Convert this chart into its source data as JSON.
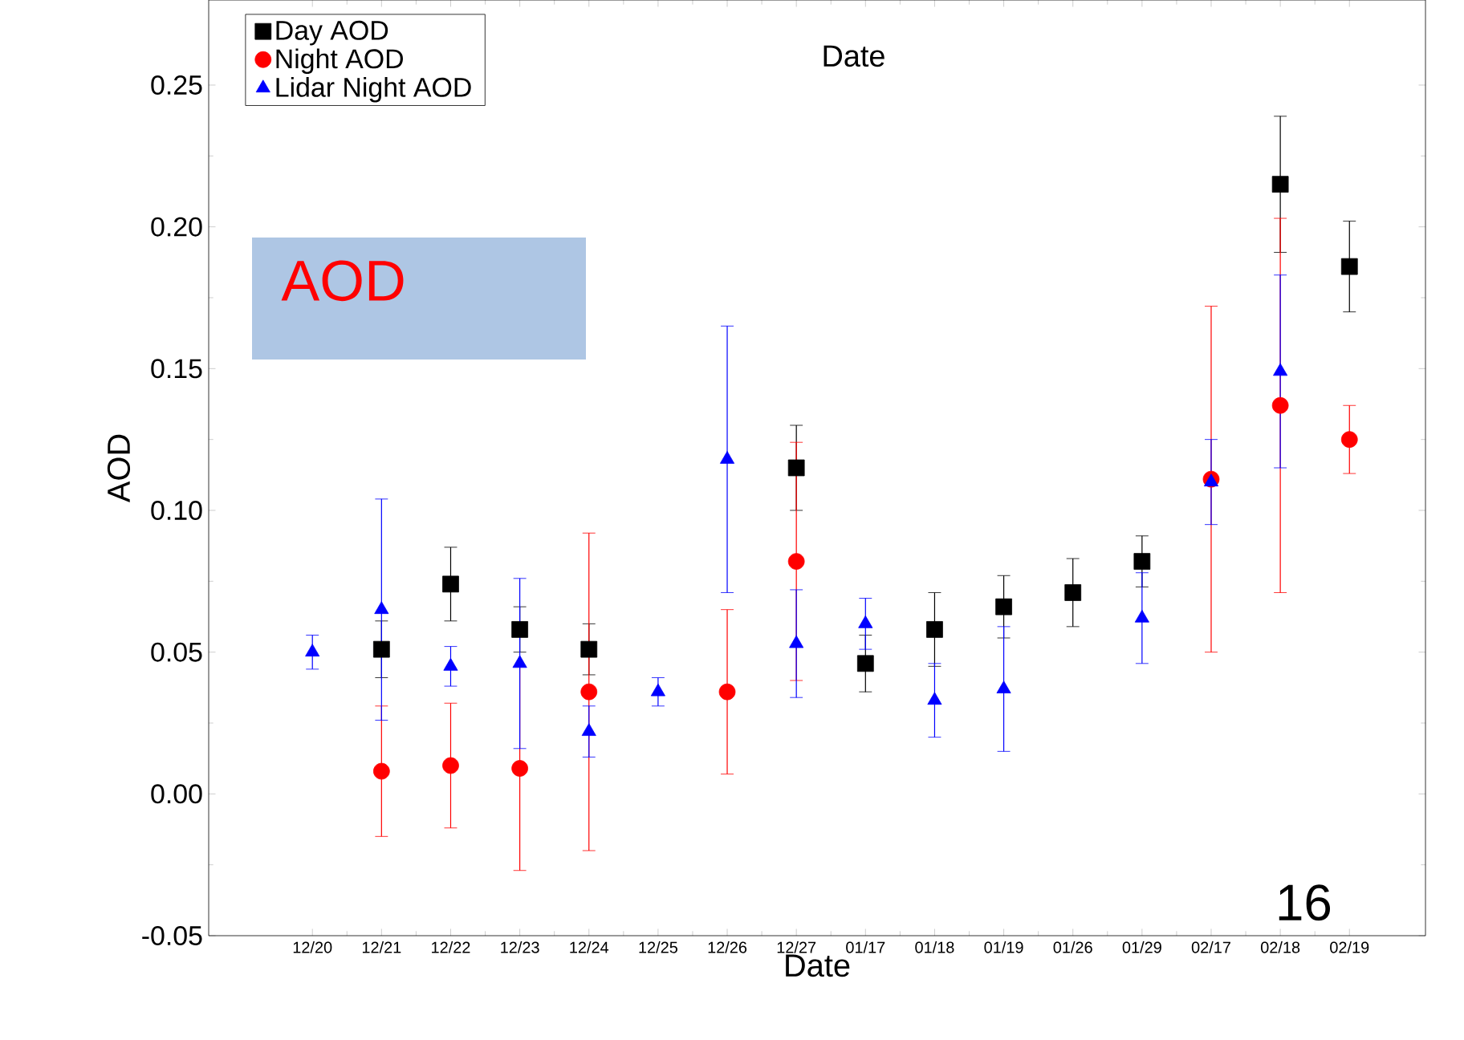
{
  "chart_data": {
    "type": "scatter",
    "xlabel": "Date",
    "ylabel": "AOD",
    "categories": [
      "12/20",
      "12/21",
      "12/22",
      "12/23",
      "12/24",
      "12/25",
      "12/26",
      "12/27",
      "01/17",
      "01/18",
      "01/19",
      "01/26",
      "01/29",
      "02/17",
      "02/18",
      "02/19"
    ],
    "series": [
      {
        "name": "Day AOD",
        "color": "#000000",
        "marker": "square",
        "values": [
          null,
          0.051,
          0.074,
          0.058,
          0.051,
          null,
          null,
          0.115,
          0.046,
          0.058,
          0.066,
          0.071,
          0.082,
          null,
          0.215,
          0.186
        ],
        "errors": [
          null,
          0.01,
          0.013,
          0.008,
          0.009,
          null,
          null,
          0.015,
          0.01,
          0.013,
          0.011,
          0.012,
          0.009,
          null,
          0.024,
          0.016
        ]
      },
      {
        "name": "Night AOD",
        "color": "#ff0000",
        "marker": "circle",
        "values": [
          null,
          0.008,
          0.01,
          0.009,
          0.036,
          null,
          0.036,
          0.082,
          null,
          null,
          null,
          null,
          null,
          0.111,
          0.137,
          0.125
        ],
        "errors": [
          null,
          0.023,
          0.022,
          0.036,
          0.056,
          null,
          0.029,
          0.042,
          null,
          null,
          null,
          null,
          null,
          0.061,
          0.066,
          0.012
        ]
      },
      {
        "name": "Lidar Night AOD",
        "color": "#0000ff",
        "marker": "triangle",
        "values": [
          0.05,
          0.065,
          0.045,
          0.046,
          0.022,
          0.036,
          0.118,
          0.053,
          0.06,
          0.033,
          0.037,
          null,
          0.062,
          0.11,
          0.149,
          null
        ],
        "errors": [
          0.006,
          0.039,
          0.007,
          0.03,
          0.009,
          0.005,
          0.047,
          0.019,
          0.009,
          0.013,
          0.022,
          null,
          0.016,
          0.015,
          0.034,
          null
        ]
      }
    ],
    "ylim": [
      -0.05,
      0.28
    ],
    "yticks": [
      {
        "value": -0.05,
        "label": "-0.05"
      },
      {
        "value": 0,
        "label": "0.00"
      },
      {
        "value": 0.05,
        "label": "0.05"
      },
      {
        "value": 0.1,
        "label": "0.10"
      },
      {
        "value": 0.15,
        "label": "0.15"
      },
      {
        "value": 0.2,
        "label": "0.20"
      },
      {
        "value": 0.25,
        "label": "0.25"
      }
    ],
    "legend": "top left",
    "grid": false,
    "annotations": [
      "Date",
      "AOD",
      "16"
    ]
  }
}
